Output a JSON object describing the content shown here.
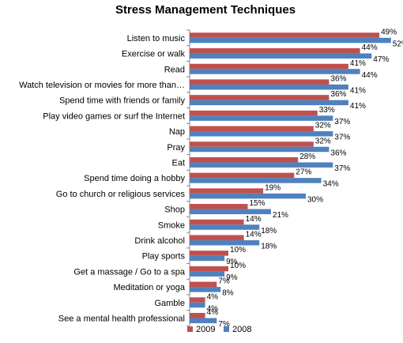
{
  "chart_data": {
    "type": "bar",
    "orientation": "horizontal",
    "title": "Stress Management Techniques",
    "categories": [
      "Listen to music",
      "Exercise or walk",
      "Read",
      "Watch television or movies for more than…",
      "Spend time with friends or family",
      "Play video games or surf the Internet",
      "Nap",
      "Pray",
      "Eat",
      "Spend time doing a hobby",
      "Go to church or religious services",
      "Shop",
      "Smoke",
      "Drink alcohol",
      "Play sports",
      "Get a massage / Go to a spa",
      "Meditation or yoga",
      "Gamble",
      "See a mental health professional"
    ],
    "series": [
      {
        "name": "2009",
        "color": "#C0504D",
        "values": [
          49,
          44,
          41,
          36,
          36,
          33,
          32,
          32,
          28,
          27,
          19,
          15,
          14,
          14,
          10,
          10,
          7,
          4,
          4
        ]
      },
      {
        "name": "2008",
        "color": "#4F81BD",
        "values": [
          52,
          47,
          44,
          41,
          41,
          37,
          37,
          36,
          37,
          34,
          30,
          21,
          18,
          18,
          9,
          9,
          8,
          4,
          7
        ]
      }
    ],
    "value_suffix": "%",
    "xlim": [
      0,
      55
    ],
    "grid": false,
    "legend": "bottom-right"
  }
}
